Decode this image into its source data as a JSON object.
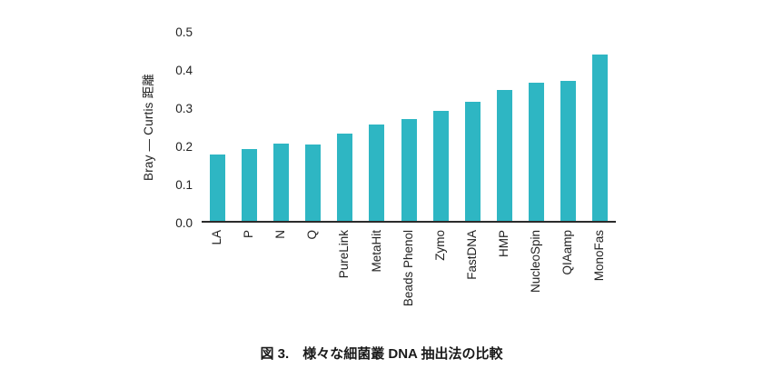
{
  "caption": "図 3.　様々な細菌叢 DNA 抽出法の比較",
  "chart_data": {
    "type": "bar",
    "categories": [
      "LA",
      "P",
      "N",
      "Q",
      "PureLink",
      "MetaHit",
      "Beads Phenol",
      "Zymo",
      "FastDNA",
      "HMP",
      "NucleoSpin",
      "QIAamp",
      "MonoFas"
    ],
    "values": [
      0.175,
      0.19,
      0.205,
      0.203,
      0.23,
      0.255,
      0.27,
      0.29,
      0.315,
      0.345,
      0.365,
      0.37,
      0.44
    ],
    "title": "",
    "xlabel": "",
    "ylabel": "Bray — Curtis 距離",
    "ylim": [
      0,
      0.5
    ],
    "yticks": [
      "0.0",
      "0.1",
      "0.2",
      "0.3",
      "0.4",
      "0.5"
    ],
    "bar_color": "#2eb6c3",
    "grid": false,
    "legend": "none",
    "x_tick_rotation": 90
  }
}
